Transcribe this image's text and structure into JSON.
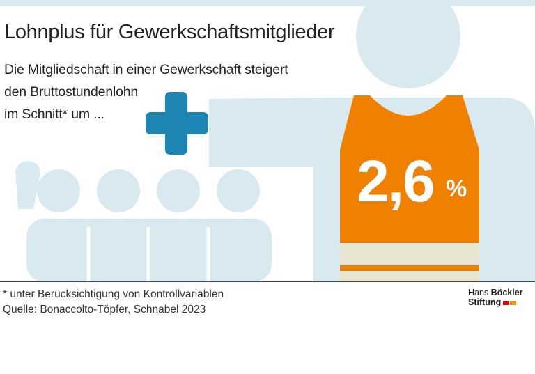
{
  "title": "Lohnplus für Gewerkschaftsmitglieder",
  "subtitle": {
    "line1": "Die Mitgliedschaft in einer Gewerkschaft steigert",
    "line2": "den Bruttostundenlohn",
    "line3": "im Schnitt* um ..."
  },
  "highlight": {
    "value": "2,6",
    "unit": "%"
  },
  "footnote": {
    "note": "* unter Berücksichtigung von Kontrollvariablen",
    "source": "Quelle: Bonaccolto-Töpfer, Schnabel 2023"
  },
  "logo": {
    "line1_light": "Hans",
    "line1_bold": "Böckler",
    "line2": "Stiftung"
  },
  "icons": [
    "plus-icon",
    "worker-figure-icon",
    "group-of-people-icon",
    "safety-vest-icon"
  ],
  "colors": {
    "figure": "#d8eaf0",
    "vest": "#f08100",
    "vest_stripe": "#e8e4d2",
    "plus": "#1d86b4",
    "logo_red": "#e2001a",
    "logo_orange": "#f39200"
  }
}
